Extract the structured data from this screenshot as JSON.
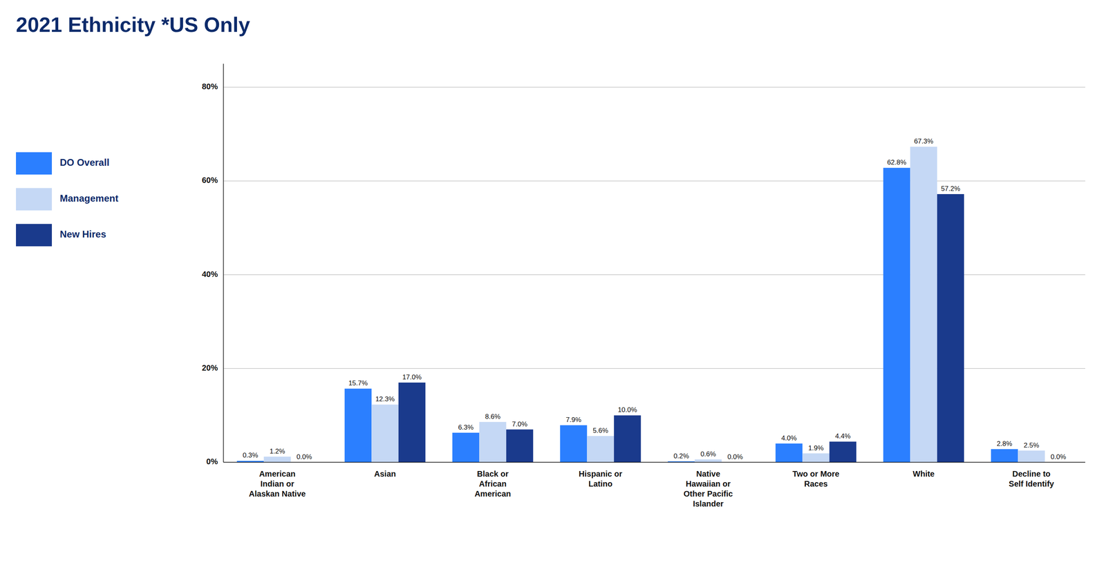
{
  "chart_data": {
    "type": "bar",
    "title": "2021 Ethnicity *US Only",
    "categories": [
      "American\nIndian or\nAlaskan Native",
      "Asian",
      "Black or\nAfrican\nAmerican",
      "Hispanic or\nLatino",
      "Native\nHawaiian or\nOther Pacific\nIslander",
      "Two or More\nRaces",
      "White",
      "Decline to\nSelf Identify"
    ],
    "series": [
      {
        "name": "DO Overall",
        "color": "#2b7fff",
        "values": [
          0.3,
          15.7,
          6.3,
          7.9,
          0.2,
          4.0,
          62.8,
          2.8
        ],
        "value_labels": [
          "0.3%",
          "15.7%",
          "6.3%",
          "7.9%",
          "0.2%",
          "4.0%",
          "62.8%",
          "2.8%"
        ]
      },
      {
        "name": "Management",
        "color": "#c5d8f5",
        "values": [
          1.2,
          12.3,
          8.6,
          5.6,
          0.6,
          1.9,
          67.3,
          2.5
        ],
        "value_labels": [
          "1.2%",
          "12.3%",
          "8.6%",
          "5.6%",
          "0.6%",
          "1.9%",
          "67.3%",
          "2.5%"
        ]
      },
      {
        "name": "New Hires",
        "color": "#1a3a8c",
        "values": [
          0.0,
          17.0,
          7.0,
          10.0,
          0.0,
          4.4,
          57.2,
          0.0
        ],
        "value_labels": [
          "0.0%",
          "17.0%",
          "7.0%",
          "10.0%",
          "0.0%",
          "4.4%",
          "57.2%",
          "0.0%"
        ]
      }
    ],
    "ylim": [
      0,
      85
    ],
    "yticks": [
      {
        "value": 0,
        "label": "0%"
      },
      {
        "value": 20,
        "label": "20%"
      },
      {
        "value": 40,
        "label": "40%"
      },
      {
        "value": 60,
        "label": "60%"
      },
      {
        "value": 80,
        "label": "80%"
      }
    ],
    "grid": true,
    "legend": "left",
    "data_labels": true
  }
}
